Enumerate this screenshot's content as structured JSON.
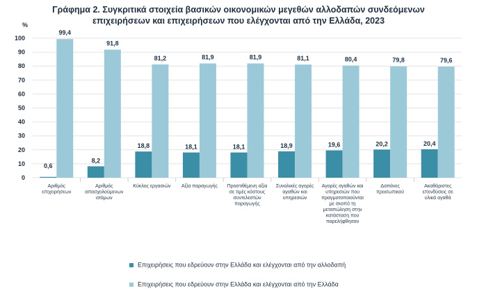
{
  "title_line1": "Γράφημα 2. Συγκριτικά στοιχεία βασικών οικονομικών μεγεθών  αλλοδαπών συνδεόμενων",
  "title_line2": "επιχειρήσεων και επιχειρήσεων που ελέγχονται από την Ελλάδα, 2023",
  "colors": {
    "series1": "#3a8ea6",
    "series2": "#9cc9d8",
    "grid": "#e3e3e3",
    "text": "#1f2d3d"
  },
  "chart_data": {
    "type": "bar",
    "ylabel": "%",
    "ylim": [
      0,
      100
    ],
    "yticks": [
      0,
      10,
      20,
      30,
      40,
      50,
      60,
      70,
      80,
      90,
      100
    ],
    "grid": true,
    "legend_position": "bottom",
    "categories": [
      [
        "Αριθμός",
        "επιχειρήσεων"
      ],
      [
        "Αριθμός",
        "απασχολούμενων",
        "ατόμων"
      ],
      [
        "Κύκλος εργασιών"
      ],
      [
        "Αξία παραγωγής"
      ],
      [
        "Προστιθέμενη αξία",
        "σε τιμές κόστους",
        "συντελεστών",
        "παραγωγής"
      ],
      [
        "Συνολικές αγορές",
        "αγαθών και",
        "υπηρεσιών"
      ],
      [
        "Αγορές αγαθών και",
        "υπηρεσιών που",
        "πραγματοποιούνται",
        "με σκοπό τη",
        "μεταπώληση στην",
        "κατάσταση που",
        "παρελήφθησαν"
      ],
      [
        "Δαπάνες",
        "προσωπικού"
      ],
      [
        "Ακαθάριστες",
        "επενδύσεις σε",
        "υλικά αγαθά"
      ]
    ],
    "series": [
      {
        "name": "Επιχειρήσεις που εδρεύουν στην Ελλάδα και ελέγχονται από την αλλοδαπή",
        "values": [
          0.6,
          8.2,
          18.8,
          18.1,
          18.1,
          18.9,
          19.6,
          20.2,
          20.4
        ],
        "labels": [
          "0,6",
          "8,2",
          "18,8",
          "18,1",
          "18,1",
          "18,9",
          "19,6",
          "20,2",
          "20,4"
        ]
      },
      {
        "name": "Επιχειρήσεις που εδρεύουν στην Ελλάδα και ελέγχονται από την Ελλάδα",
        "values": [
          99.4,
          91.8,
          81.2,
          81.9,
          81.9,
          81.1,
          80.4,
          79.8,
          79.6
        ],
        "labels": [
          "99,4",
          "91,8",
          "81,2",
          "81,9",
          "81,9",
          "81,1",
          "80,4",
          "79,8",
          "79,6"
        ]
      }
    ]
  }
}
